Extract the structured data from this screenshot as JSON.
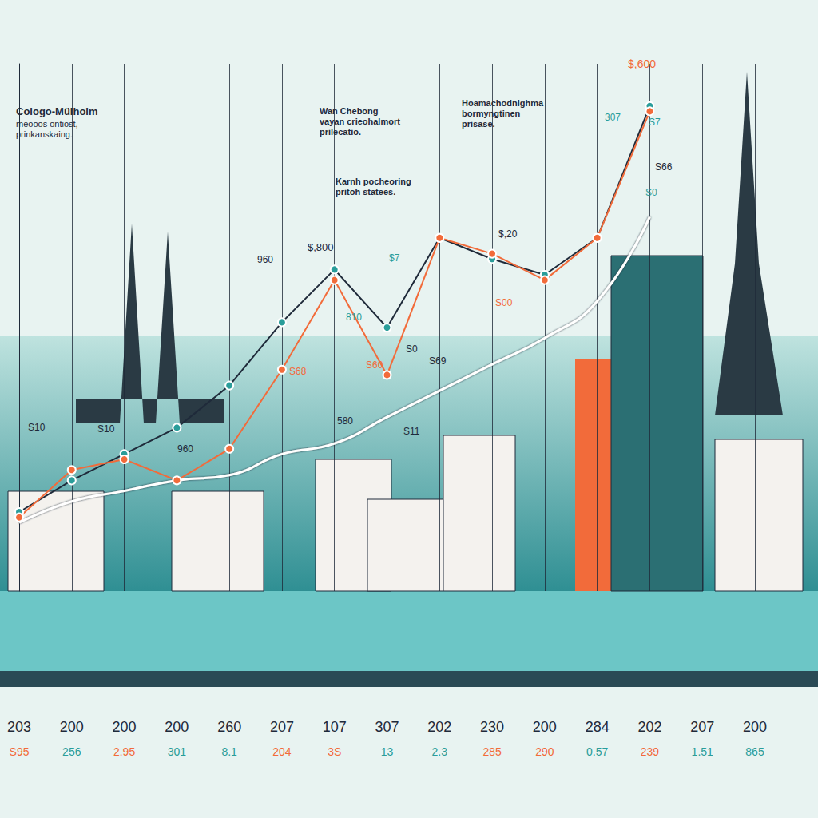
{
  "chart_data": {
    "type": "line",
    "title": "Cologo-Mülhoim",
    "subtitle": "meooös ontiost,\nprinkanskaing.",
    "categories": [
      "203",
      "200",
      "200",
      "200",
      "260",
      "207",
      "107",
      "307",
      "202",
      "230",
      "200",
      "284",
      "202",
      "207",
      "200"
    ],
    "category_sublabels": [
      "S95",
      "256",
      "2.95",
      "301",
      "8.1",
      "204",
      "3S",
      "13",
      "2.3",
      "285",
      "290",
      "0.57",
      "239",
      "1.51",
      "865"
    ],
    "series": [
      {
        "color": "#1f2a3a",
        "marker": "circle",
        "line_style": "solid",
        "values": [
          15,
          21,
          26,
          31,
          39,
          51,
          61,
          50,
          67,
          63,
          60,
          67,
          92,
          null,
          null
        ]
      },
      {
        "color": "#f26b3a",
        "marker": "circle",
        "line_style": "solid",
        "values": [
          14,
          23,
          25,
          21,
          27,
          42,
          59,
          41,
          67,
          64,
          59,
          67,
          91,
          null,
          null
        ]
      },
      {
        "color": "#ffffff",
        "marker": "none",
        "line_style": "smooth",
        "values": [
          13,
          17,
          19,
          21,
          22,
          26,
          28,
          33,
          38,
          43,
          48,
          55,
          71,
          null,
          null
        ]
      }
    ],
    "ylim": [
      0,
      100
    ],
    "grid": true,
    "tick_labels": "x",
    "annotations": [
      "Wan Chebong\nvayan crieohalmort\nprilecatio.",
      "Hoamachodnighma\nbormyngtinen\nprisase.",
      "Karnh pocheoring\npritoh statees.",
      "$,800",
      "$,600",
      "960",
      "$7",
      "$,20",
      "S00",
      "810",
      "S0",
      "S69",
      "S60",
      "S68",
      "580",
      "S11",
      "S10",
      "S10",
      "960",
      "307",
      "S7",
      "S66",
      "S0"
    ]
  }
}
